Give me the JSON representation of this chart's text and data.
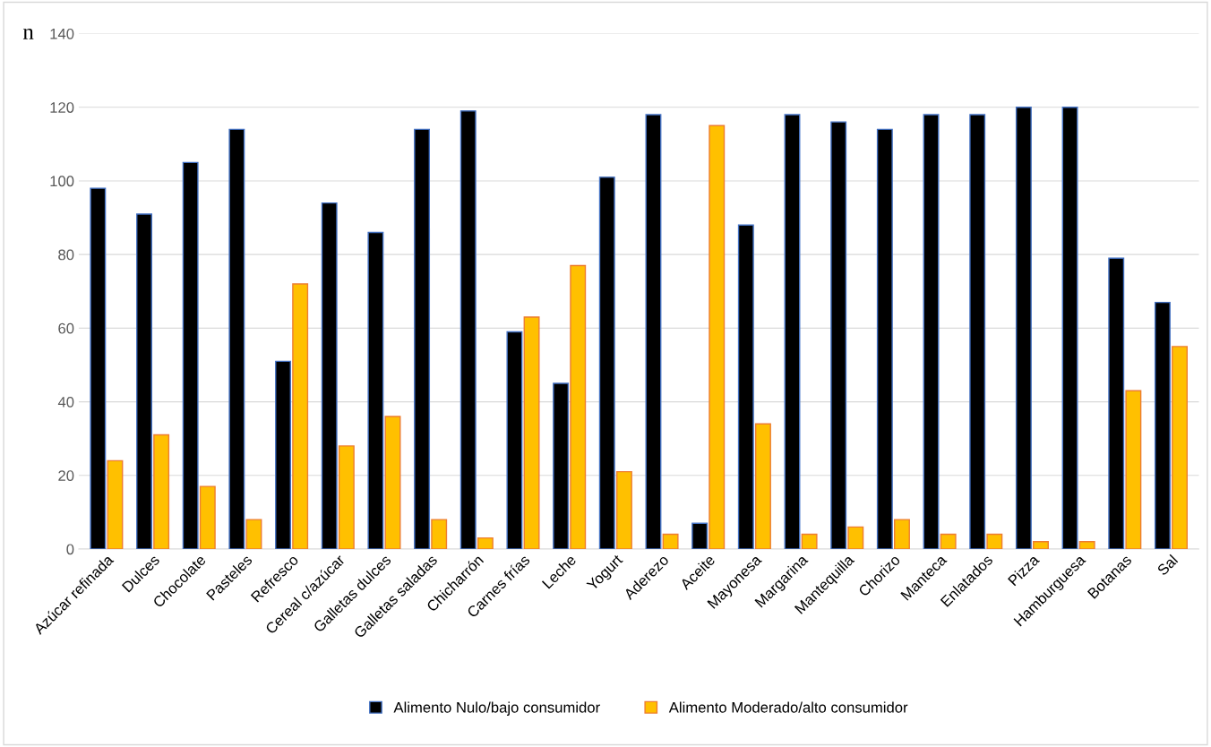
{
  "chart_data": {
    "type": "bar",
    "ylabel": "n",
    "categories": [
      "Azúcar refinada",
      "Dulces",
      "Chocolate",
      "Pasteles",
      "Refresco",
      "Cereal c/azúcar",
      "Galletas dulces",
      "Galletas saladas",
      "Chicharrón",
      "Carnes frías",
      "Leche",
      "Yogurt",
      "Aderezo",
      "Aceite",
      "Mayonesa",
      "Margarina",
      "Mantequilla",
      "Chorizo",
      "Manteca",
      "Enlatados",
      "Pizza",
      "Hamburguesa",
      "Botanas",
      "Sal"
    ],
    "series": [
      {
        "name": "Alimento Nulo/bajo consumidor",
        "color": "#000000",
        "values": [
          98,
          91,
          105,
          114,
          51,
          94,
          86,
          114,
          119,
          59,
          45,
          101,
          118,
          7,
          88,
          118,
          116,
          114,
          118,
          118,
          120,
          120,
          79,
          67
        ]
      },
      {
        "name": "Alimento Moderado/alto consumidor",
        "color": "#ffc000",
        "values": [
          24,
          31,
          17,
          8,
          72,
          28,
          36,
          8,
          3,
          63,
          77,
          21,
          4,
          115,
          34,
          4,
          6,
          8,
          4,
          4,
          2,
          2,
          43,
          55
        ]
      }
    ],
    "ylim": [
      0,
      140
    ],
    "yticks": [
      0,
      20,
      40,
      60,
      80,
      100,
      120,
      140
    ],
    "grid": "y",
    "legend": "bottom"
  }
}
